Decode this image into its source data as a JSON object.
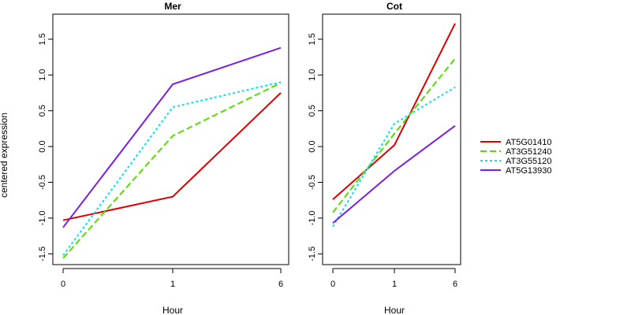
{
  "chart_data": {
    "type": "line",
    "ylabel": "centered expression",
    "xlabel": "Hour",
    "legend_position": "right",
    "legend": [
      {
        "name": "AT5G01410",
        "color": "#dd0000",
        "dash": "solid"
      },
      {
        "name": "AT3G51240",
        "color": "#55dd00",
        "dash": "dashed"
      },
      {
        "name": "AT3G55120",
        "color": "#00e5ee",
        "dash": "dotted"
      },
      {
        "name": "AT5G13930",
        "color": "#7b1fe0",
        "dash": "solid"
      }
    ],
    "panels": [
      {
        "title": "Mer",
        "categories": [
          "0",
          "1",
          "6"
        ],
        "ylim": [
          -1.65,
          1.85
        ],
        "yticks": [
          "-1.5",
          "-1.0",
          "-0.5",
          "0.0",
          "0.5",
          "1.0",
          "1.5"
        ],
        "series": [
          {
            "name": "AT5G01410",
            "values": [
              -1.03,
              -0.7,
              0.75
            ]
          },
          {
            "name": "AT3G51240",
            "values": [
              -1.56,
              0.15,
              0.89
            ]
          },
          {
            "name": "AT3G55120",
            "values": [
              -1.52,
              0.55,
              0.9
            ]
          },
          {
            "name": "AT5G13930",
            "values": [
              -1.13,
              0.87,
              1.38
            ]
          }
        ]
      },
      {
        "title": "Cot",
        "categories": [
          "0",
          "1",
          "6"
        ],
        "ylim": [
          -1.65,
          1.85
        ],
        "yticks": [
          "-1.5",
          "-1.0",
          "-0.5",
          "0.0",
          "0.5",
          "1.0",
          "1.5"
        ],
        "series": [
          {
            "name": "AT5G01410",
            "values": [
              -0.74,
              0.02,
              1.72
            ]
          },
          {
            "name": "AT3G51240",
            "values": [
              -0.92,
              0.18,
              1.23
            ]
          },
          {
            "name": "AT3G55120",
            "values": [
              -1.12,
              0.32,
              0.83
            ]
          },
          {
            "name": "AT5G13930",
            "values": [
              -1.07,
              -0.34,
              0.29
            ]
          }
        ]
      }
    ]
  }
}
